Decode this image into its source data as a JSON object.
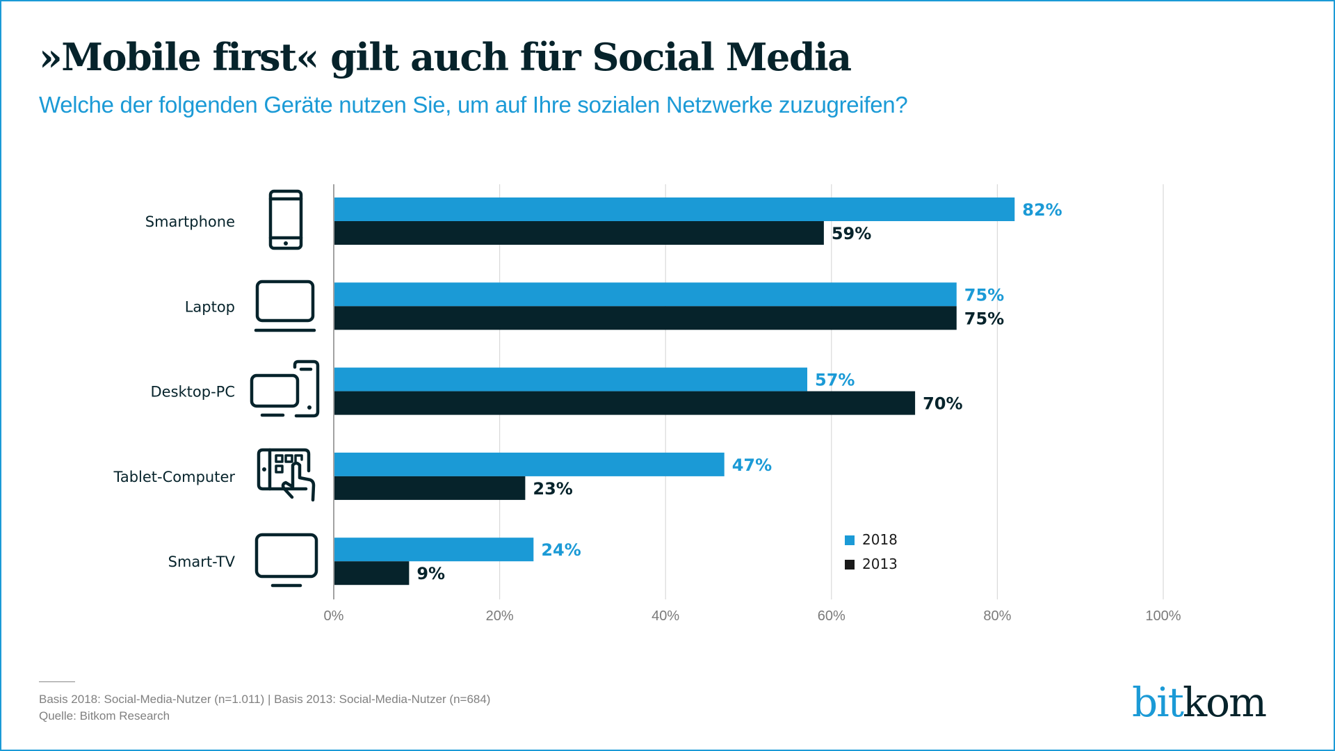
{
  "header": {
    "title": "»Mobile first« gilt auch für Social Media",
    "subtitle": "Welche der folgenden Geräte nutzen Sie, um auf Ihre sozialen Netzwerke zuzugreifen?"
  },
  "colors": {
    "accent": "#1b9ad6",
    "dark": "#06232b",
    "series_2018": "#1b9ad6",
    "series_2013": "#06232b",
    "gridline": "#d9d9d9",
    "tick_text": "#7a7a7a"
  },
  "chart_data": {
    "type": "bar",
    "orientation": "horizontal",
    "title": "»Mobile first« gilt auch für Social Media",
    "subtitle": "Welche der folgenden Geräte nutzen Sie, um auf Ihre sozialen Netzwerke zuzugreifen?",
    "categories": [
      "Smartphone",
      "Laptop",
      "Desktop-PC",
      "Tablet-Computer",
      "Smart-TV"
    ],
    "category_icons": [
      "smartphone-icon",
      "laptop-icon",
      "desktop-pc-icon",
      "tablet-icon",
      "smart-tv-icon"
    ],
    "series": [
      {
        "name": "2018",
        "color": "#1b9ad6",
        "values": [
          82,
          75,
          57,
          47,
          24
        ],
        "labels": [
          "82%",
          "75%",
          "57%",
          "47%",
          "24%"
        ]
      },
      {
        "name": "2013",
        "color": "#06232b",
        "values": [
          59,
          75,
          70,
          23,
          9
        ],
        "labels": [
          "59%",
          "75%",
          "70%",
          "23%",
          "9%"
        ]
      }
    ],
    "xlim": [
      0,
      100
    ],
    "xticks": [
      0,
      20,
      40,
      60,
      80,
      100
    ],
    "xtick_labels": [
      "0%",
      "20%",
      "40%",
      "60%",
      "80%",
      "100%"
    ],
    "xlabel": "",
    "ylabel": "",
    "grid": true,
    "legend": {
      "position": "bottom-right",
      "entries": [
        "2018",
        "2013"
      ]
    }
  },
  "footer": {
    "basis": "Basis 2018: Social-Media-Nutzer (n=1.011) | Basis 2013:  Social-Media-Nutzer (n=684)",
    "source": "Quelle: Bitkom Research"
  },
  "logo": {
    "part1": "bit",
    "part2": "kom"
  }
}
